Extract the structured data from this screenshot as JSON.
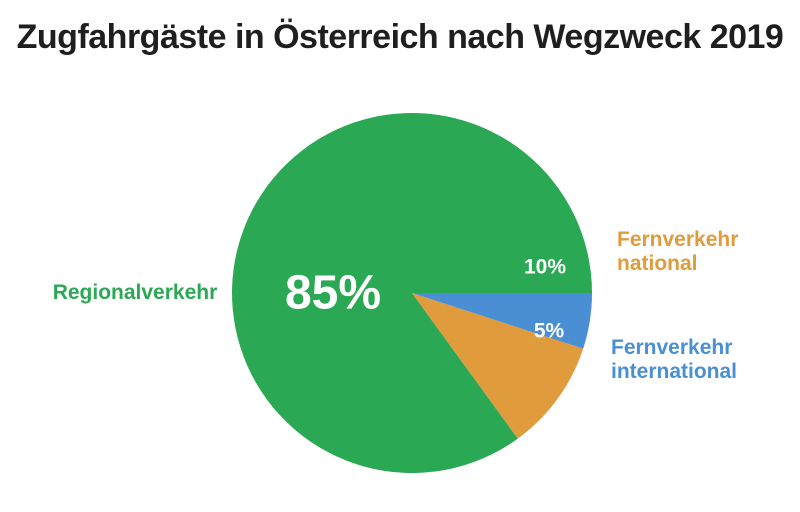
{
  "chart_data": {
    "type": "pie",
    "title": "Zugfahrgäste in Österreich nach Wegzweck 2019",
    "slices": [
      {
        "name": "Regionalverkehr",
        "label_lines": [
          "Regionalverkehr"
        ],
        "value": 85,
        "value_label": "85%",
        "color": "#2aa853"
      },
      {
        "name": "Fernverkehr national",
        "label_lines": [
          "Fernverkehr",
          "national"
        ],
        "value": 10,
        "value_label": "10%",
        "color": "#e09b3d"
      },
      {
        "name": "Fernverkehr international",
        "label_lines": [
          "Fernverkehr",
          "international"
        ],
        "value": 5,
        "value_label": "5%",
        "color": "#4a8fd4"
      }
    ],
    "legend": "labels beside slices"
  }
}
